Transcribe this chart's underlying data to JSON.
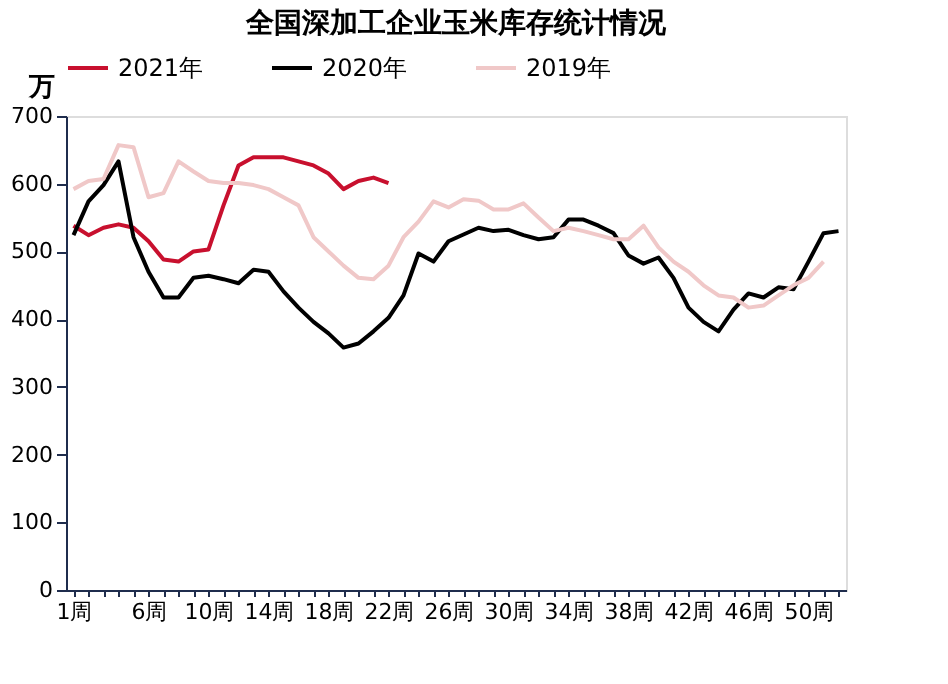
{
  "chart_data": {
    "type": "line",
    "title": "全国深加工企业玉米库存统计情况",
    "ylabel": "万",
    "categories": [
      "1周",
      null,
      null,
      null,
      null,
      "6周",
      null,
      null,
      null,
      "10周",
      null,
      null,
      null,
      "14周",
      null,
      null,
      null,
      "18周",
      null,
      null,
      null,
      "22周",
      null,
      null,
      null,
      "26周",
      null,
      null,
      null,
      "30周",
      null,
      null,
      null,
      "34周",
      null,
      null,
      null,
      "38周",
      null,
      null,
      null,
      "42周",
      null,
      null,
      null,
      "46周",
      null,
      null,
      null,
      "50周",
      null,
      null
    ],
    "series": [
      {
        "name": "2021年",
        "color": "#c8102e",
        "values": [
          538,
          524,
          535,
          540,
          535,
          515,
          488,
          485,
          500,
          503,
          568,
          627,
          639,
          639,
          639,
          633,
          627,
          615,
          592,
          604,
          609,
          601,
          null,
          null,
          null,
          null,
          null,
          null,
          null,
          null,
          null,
          null,
          null,
          null,
          null,
          null,
          null,
          null,
          null,
          null,
          null,
          null,
          null,
          null,
          null,
          null,
          null,
          null,
          null,
          null,
          null,
          null
        ]
      },
      {
        "name": "2020年",
        "color": "#000000",
        "values": [
          524,
          574,
          598,
          633,
          521,
          470,
          432,
          432,
          461,
          464,
          459,
          453,
          473,
          470,
          441,
          417,
          396,
          379,
          358,
          364,
          382,
          402,
          435,
          497,
          485,
          515,
          525,
          535,
          530,
          532,
          524,
          518,
          521,
          547,
          547,
          538,
          527,
          494,
          482,
          491,
          461,
          417,
          396,
          382,
          414,
          438,
          432,
          447,
          444,
          485,
          527,
          530
        ]
      },
      {
        "name": "2019年",
        "color": "#f0c8c8",
        "values": [
          592,
          604,
          607,
          657,
          654,
          580,
          586,
          633,
          618,
          604,
          601,
          601,
          598,
          592,
          580,
          568,
          521,
          500,
          479,
          461,
          459,
          479,
          521,
          544,
          574,
          565,
          577,
          575,
          562,
          562,
          571,
          550,
          530,
          535,
          530,
          524,
          518,
          518,
          538,
          506,
          485,
          470,
          450,
          435,
          432,
          417,
          420,
          435,
          450,
          461,
          485,
          null
        ]
      }
    ],
    "ylim": [
      0,
      700
    ],
    "yticks": [
      0,
      100,
      200,
      300,
      400,
      500,
      600,
      700
    ],
    "grid": false,
    "legend": "top",
    "marker": "none",
    "line_style": "solid"
  }
}
